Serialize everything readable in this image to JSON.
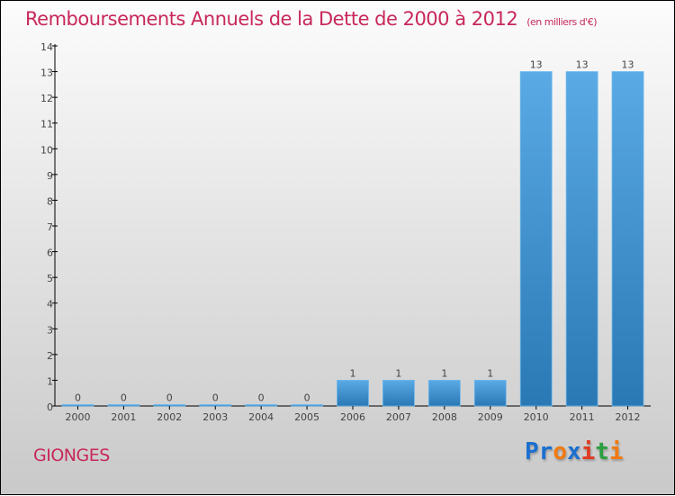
{
  "chart_data": {
    "type": "bar",
    "title": "Remboursements Annuels de la Dette de 2000 à 2012",
    "unit": "(en milliers d'€)",
    "categories": [
      "2000",
      "2001",
      "2002",
      "2003",
      "2004",
      "2005",
      "2006",
      "2007",
      "2008",
      "2009",
      "2010",
      "2011",
      "2012"
    ],
    "values": [
      0,
      0,
      0,
      0,
      0,
      0,
      1,
      1,
      1,
      1,
      13,
      13,
      13
    ],
    "yticks": [
      0,
      1,
      2,
      3,
      4,
      5,
      6,
      7,
      8,
      9,
      10,
      11,
      12,
      13,
      14
    ],
    "ylim": [
      0,
      14
    ],
    "xlabel": "",
    "ylabel": "",
    "bar_color": "#3a8fd0"
  },
  "city": "GIONGES",
  "logo": {
    "letters": [
      "P",
      "r",
      "o",
      "x",
      "i",
      "t",
      "i"
    ],
    "colors": [
      "#1a6fd0",
      "#1a6fd0",
      "#f07a10",
      "#1a6fd0",
      "#e03a20",
      "#2aa040",
      "#f07a10"
    ]
  }
}
